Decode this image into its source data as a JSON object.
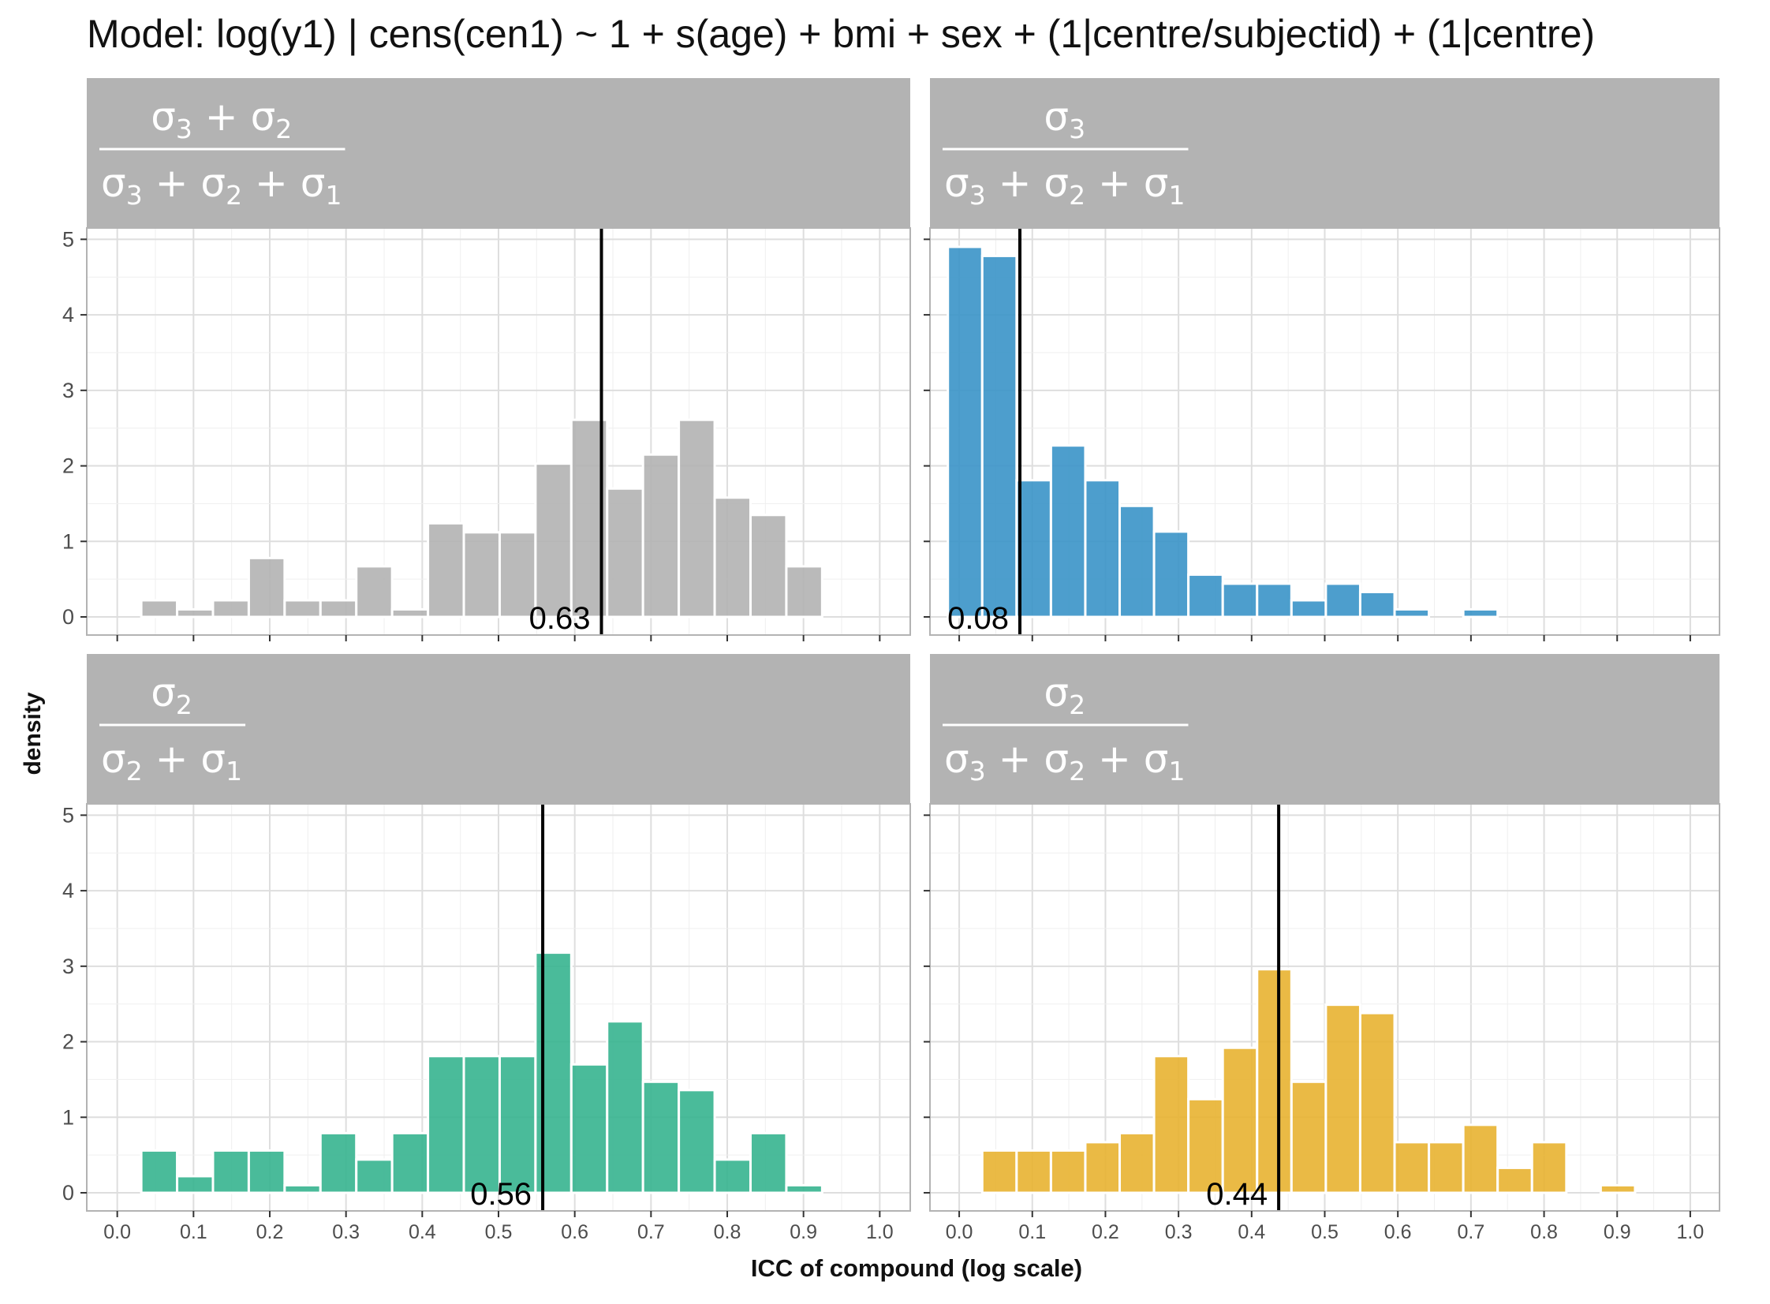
{
  "title": "Model: log(y1) | cens(cen1) ~ 1 + s(age) + bmi + sex + (1|centre/subjectid) + (1|centre)",
  "chart_data": {
    "type": "bar",
    "title": "Model: log(y1) | cens(cen1) ~ 1 + s(age) + bmi + sex + (1|centre/subjectid) + (1|centre)",
    "xlabel": "ICC of compound (log scale)",
    "ylabel": "density",
    "xlim": [
      0.0,
      1.0
    ],
    "ylim": [
      0,
      5
    ],
    "x_ticks": [
      "0.0",
      "0.1",
      "0.2",
      "0.3",
      "0.4",
      "0.5",
      "0.6",
      "0.7",
      "0.8",
      "0.9",
      "1.0"
    ],
    "y_ticks": [
      "0",
      "1",
      "2",
      "3",
      "4",
      "5"
    ],
    "bin_width": 0.047,
    "grid": true,
    "panels": [
      {
        "strip": {
          "num": [
            [
              "3"
            ],
            [
              "2"
            ]
          ],
          "den": [
            [
              "3"
            ],
            [
              "2"
            ],
            [
              "1"
            ]
          ]
        },
        "color": "#b3b3b3",
        "reference": {
          "x": 0.635,
          "label": "0.63"
        },
        "bins": [
          {
            "x": 0.055,
            "y": 0.22
          },
          {
            "x": 0.102,
            "y": 0.1
          },
          {
            "x": 0.149,
            "y": 0.22
          },
          {
            "x": 0.196,
            "y": 0.78
          },
          {
            "x": 0.243,
            "y": 0.22
          },
          {
            "x": 0.29,
            "y": 0.22
          },
          {
            "x": 0.337,
            "y": 0.67
          },
          {
            "x": 0.384,
            "y": 0.1
          },
          {
            "x": 0.431,
            "y": 1.24
          },
          {
            "x": 0.478,
            "y": 1.12
          },
          {
            "x": 0.525,
            "y": 1.12
          },
          {
            "x": 0.572,
            "y": 2.03
          },
          {
            "x": 0.619,
            "y": 2.61
          },
          {
            "x": 0.666,
            "y": 1.7
          },
          {
            "x": 0.713,
            "y": 2.15
          },
          {
            "x": 0.76,
            "y": 2.61
          },
          {
            "x": 0.807,
            "y": 1.58
          },
          {
            "x": 0.854,
            "y": 1.35
          },
          {
            "x": 0.901,
            "y": 0.67
          }
        ]
      },
      {
        "strip": {
          "num": [
            [
              "3"
            ]
          ],
          "den": [
            [
              "3"
            ],
            [
              "2"
            ],
            [
              "1"
            ]
          ]
        },
        "color": "#3a94c8",
        "reference": {
          "x": 0.083,
          "label": "0.08"
        },
        "bins": [
          {
            "x": 0.008,
            "y": 4.9
          },
          {
            "x": 0.055,
            "y": 4.78
          },
          {
            "x": 0.102,
            "y": 1.81
          },
          {
            "x": 0.149,
            "y": 2.27
          },
          {
            "x": 0.196,
            "y": 1.81
          },
          {
            "x": 0.243,
            "y": 1.47
          },
          {
            "x": 0.29,
            "y": 1.13
          },
          {
            "x": 0.337,
            "y": 0.56
          },
          {
            "x": 0.384,
            "y": 0.44
          },
          {
            "x": 0.431,
            "y": 0.44
          },
          {
            "x": 0.478,
            "y": 0.22
          },
          {
            "x": 0.525,
            "y": 0.44
          },
          {
            "x": 0.572,
            "y": 0.33
          },
          {
            "x": 0.619,
            "y": 0.1
          },
          {
            "x": 0.713,
            "y": 0.1
          }
        ]
      },
      {
        "strip": {
          "num": [
            [
              "2"
            ]
          ],
          "den": [
            [
              "2"
            ],
            [
              "1"
            ]
          ]
        },
        "color": "#36b48f",
        "reference": {
          "x": 0.558,
          "label": "0.56"
        },
        "bins": [
          {
            "x": 0.055,
            "y": 0.56
          },
          {
            "x": 0.102,
            "y": 0.22
          },
          {
            "x": 0.149,
            "y": 0.56
          },
          {
            "x": 0.196,
            "y": 0.56
          },
          {
            "x": 0.243,
            "y": 0.1
          },
          {
            "x": 0.29,
            "y": 0.79
          },
          {
            "x": 0.337,
            "y": 0.44
          },
          {
            "x": 0.384,
            "y": 0.79
          },
          {
            "x": 0.431,
            "y": 1.81
          },
          {
            "x": 0.478,
            "y": 1.81
          },
          {
            "x": 0.525,
            "y": 1.81
          },
          {
            "x": 0.572,
            "y": 3.18
          },
          {
            "x": 0.619,
            "y": 1.7
          },
          {
            "x": 0.666,
            "y": 2.27
          },
          {
            "x": 0.713,
            "y": 1.47
          },
          {
            "x": 0.76,
            "y": 1.36
          },
          {
            "x": 0.807,
            "y": 0.44
          },
          {
            "x": 0.854,
            "y": 0.79
          },
          {
            "x": 0.901,
            "y": 0.1
          }
        ]
      },
      {
        "strip": {
          "num": [
            [
              "2"
            ]
          ],
          "den": [
            [
              "3"
            ],
            [
              "2"
            ],
            [
              "1"
            ]
          ]
        },
        "color": "#e8b231",
        "reference": {
          "x": 0.437,
          "label": "0.44"
        },
        "bins": [
          {
            "x": 0.055,
            "y": 0.56
          },
          {
            "x": 0.102,
            "y": 0.56
          },
          {
            "x": 0.149,
            "y": 0.56
          },
          {
            "x": 0.196,
            "y": 0.67
          },
          {
            "x": 0.243,
            "y": 0.79
          },
          {
            "x": 0.29,
            "y": 1.81
          },
          {
            "x": 0.337,
            "y": 1.24
          },
          {
            "x": 0.384,
            "y": 1.92
          },
          {
            "x": 0.431,
            "y": 2.96
          },
          {
            "x": 0.478,
            "y": 1.47
          },
          {
            "x": 0.525,
            "y": 2.49
          },
          {
            "x": 0.572,
            "y": 2.38
          },
          {
            "x": 0.619,
            "y": 0.67
          },
          {
            "x": 0.666,
            "y": 0.67
          },
          {
            "x": 0.713,
            "y": 0.9
          },
          {
            "x": 0.76,
            "y": 0.33
          },
          {
            "x": 0.807,
            "y": 0.67
          },
          {
            "x": 0.901,
            "y": 0.1
          }
        ]
      }
    ]
  }
}
